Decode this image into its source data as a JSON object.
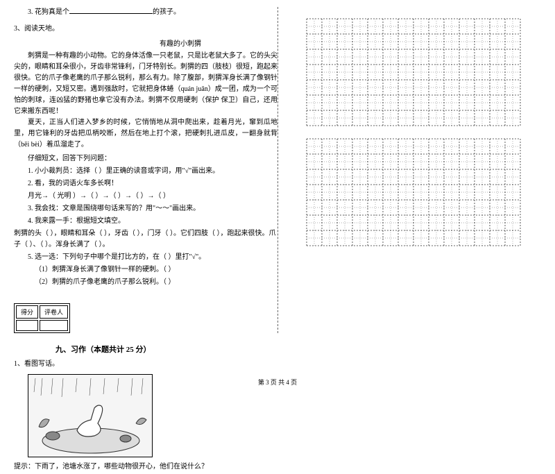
{
  "q2_line3": {
    "prefix": "3. 花狗真是个",
    "suffix": "的孩子。"
  },
  "q3_heading": "3、阅读天地。",
  "passage_title": "有趣的小刺猬",
  "passage": {
    "p1": "刺猬是一种有趣的小动物。它的身体活像一只老鼠，只是比老鼠大多了。它的头尖尖的，眼睛和耳朵很小，牙齿非常锋利，门牙特别长。刺猬的四（肢枝）很短，跑起来很快。它的爪子像老鹰的爪子那么锐利，那么有力。除了腹部，刺猬浑身长满了像钢针一样的硬刺，又短又密。遇到强敌时，它就把身体蜷（quán  juǎn）成一团，成为一个可怕的刺球，连凶猛的野猪也拿它没有办法。刺猬不仅用硬刺（保护  保卫）自己，还用它来搬东西呢！",
    "p2": "夏天，正当人们进入梦乡的时候，它悄悄地从洞中爬出来，趁着月光，窜到瓜地里，用它锋利的牙齿把瓜柄咬断，然后在地上打个滚，把硬刺扎进瓜皮，一翻身就背（bēi  bèi）着瓜溜走了。"
  },
  "questions": {
    "intro": "仔细短文，回答下列问题：",
    "q1": "1. 小小裁判员：选择（    ）里正确的读音或字词，用\"√\"画出来。",
    "q2": "2. 看，我的词语火车多长啊！",
    "q2_chain": "月光→（ 光明 ）→（        ）→（        ）→（        ）→（        ）",
    "q3": "3. 我会找：文章是围绕哪句话来写的？用\"～～\"画出来。",
    "q4": "4. 我来露一手：根据短文填空。",
    "q4_fill": "刺猬的头（        ），眼睛和耳朵（        ），牙齿（        ），门牙（        ）。它们四肢（        ），跑起来很快。爪子（        ）、（        ）。浑身长满了（        ）。",
    "q5": "5. 选一选：下列句子中哪个是打比方的，在（    ）里打\"√\"。",
    "q5_a": "（1）刺猬浑身长满了像钢针一样的硬刺。（    ）",
    "q5_b": "（2）刺猬的爪子像老鹰的爪子那么锐利。（    ）"
  },
  "score_labels": {
    "score": "得分",
    "reviewer": "评卷人"
  },
  "section9": "九、习作（本题共计 25 分）",
  "writing_q": "1、看图写话。",
  "writing_hint": "提示：下雨了，池塘水涨了，哪些动物很开心，他们在说什么？",
  "footer": "第 3 页  共 4 页",
  "grid": {
    "rows": 7,
    "cols": 14,
    "cell_size": 22,
    "grid_color": "#333333",
    "dash": "2,2"
  },
  "colors": {
    "background": "#ffffff",
    "text": "#000000",
    "divider": "#666666"
  }
}
